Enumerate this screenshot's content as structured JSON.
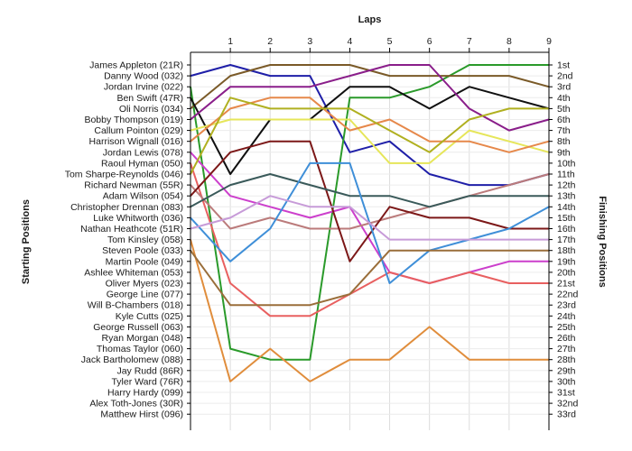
{
  "chart_data": {
    "type": "line",
    "title": "",
    "xlabel": "Laps",
    "ylabel_left": "Starting Positions",
    "ylabel_right": "Finishing Positions",
    "x": [
      0,
      1,
      2,
      3,
      4,
      5,
      6,
      7,
      8,
      9
    ],
    "x_ticks": [
      "1",
      "2",
      "3",
      "4",
      "5",
      "6",
      "7",
      "8",
      "9"
    ],
    "ylim": [
      1,
      33
    ],
    "starting_labels": [
      "James Appleton (21R)",
      "Danny Wood (032)",
      "Jordan Irvine (022)",
      "Ben Swift (47R)",
      "Oli Norris (034)",
      "Bobby Thompson (019)",
      "Callum Pointon (029)",
      "Harrison Wignall (016)",
      "Jordan Lewis (078)",
      "Raoul Hyman (050)",
      "Tom Sharpe-Reynolds (046)",
      "Richard Newman (55R)",
      "Adam Wilson (054)",
      "Christopher Drennan (083)",
      "Luke Whitworth (036)",
      "Nathan Heathcote (51R)",
      "Tom Kinsley (058)",
      "Steven Poole (033)",
      "Martin Poole (049)",
      "Ashlee Whiteman (053)",
      "Oliver Myers (023)",
      "George Line (077)",
      "Will B-Chambers (018)",
      "Kyle Cutts (025)",
      "George Russell (063)",
      "Ryan Morgan (048)",
      "Thomas Taylor (060)",
      "Jack Bartholomew (088)",
      "Jay Rudd (86R)",
      "Tyler Ward (76R)",
      "Harry Hardy (099)",
      "Alex Toth-Jones (30R)",
      "Matthew Hirst (096)"
    ],
    "finishing_labels": [
      "1st",
      "2nd",
      "3rd",
      "4th",
      "5th",
      "6th",
      "7th",
      "8th",
      "9th",
      "10th",
      "11th",
      "12th",
      "13th",
      "14th",
      "15th",
      "16th",
      "17th",
      "18th",
      "19th",
      "20th",
      "21st",
      "22nd",
      "23rd",
      "24th",
      "25th",
      "26th",
      "27th",
      "28th",
      "29th",
      "30th",
      "31st",
      "32nd",
      "33rd"
    ],
    "series": [
      {
        "color": "#1f1fa8",
        "values": [
          2,
          1,
          2,
          2,
          9,
          8,
          11,
          12,
          12,
          11
        ]
      },
      {
        "color": "#2a9a2a",
        "values": [
          3,
          27,
          28,
          28,
          4,
          4,
          3,
          1,
          1,
          1
        ]
      },
      {
        "color": "#7a5a28",
        "values": [
          5,
          2,
          1,
          1,
          1,
          2,
          2,
          2,
          2,
          3
        ]
      },
      {
        "color": "#101010",
        "values": [
          4,
          11,
          6,
          6,
          3,
          3,
          5,
          3,
          4,
          5
        ]
      },
      {
        "color": "#8a1e8a",
        "values": [
          6,
          3,
          3,
          3,
          2,
          1,
          1,
          5,
          7,
          6
        ]
      },
      {
        "color": "#e6e65a",
        "values": [
          7,
          6,
          6,
          6,
          6,
          10,
          10,
          7,
          8,
          9
        ]
      },
      {
        "color": "#e6884a",
        "values": [
          8,
          5,
          4,
          4,
          7,
          6,
          8,
          8,
          9,
          8
        ]
      },
      {
        "color": "#cc3fcc",
        "values": [
          9,
          13,
          14,
          15,
          14,
          20,
          21,
          20,
          19,
          19
        ]
      },
      {
        "color": "#e86060",
        "values": [
          10,
          21,
          24,
          24,
          22,
          20,
          21,
          20,
          21,
          21
        ]
      },
      {
        "color": "#b0b020",
        "values": [
          11,
          4,
          5,
          5,
          5,
          7,
          9,
          6,
          5,
          5
        ]
      },
      {
        "color": "#bb7b7b",
        "values": [
          12,
          16,
          15,
          16,
          16,
          15,
          14,
          13,
          12,
          11
        ]
      },
      {
        "color": "#7c1818",
        "values": [
          13,
          9,
          8,
          8,
          19,
          14,
          15,
          15,
          16,
          16
        ]
      },
      {
        "color": "#3a5a5a",
        "values": [
          14,
          12,
          11,
          12,
          13,
          13,
          14,
          13,
          13,
          13
        ]
      },
      {
        "color": "#3f8fd8",
        "values": [
          15,
          19,
          16,
          10,
          10,
          21,
          18,
          17,
          16,
          14
        ]
      },
      {
        "color": "#c79bd8",
        "values": [
          16,
          15,
          13,
          14,
          14,
          17,
          17,
          17,
          17,
          17
        ]
      },
      {
        "color": "#e08d3c",
        "values": [
          17,
          30,
          27,
          30,
          28,
          28,
          25,
          28,
          28,
          28
        ]
      },
      {
        "color": "#9a6e3a",
        "values": [
          18,
          23,
          23,
          23,
          22,
          18,
          18,
          18,
          18,
          18
        ]
      }
    ]
  }
}
